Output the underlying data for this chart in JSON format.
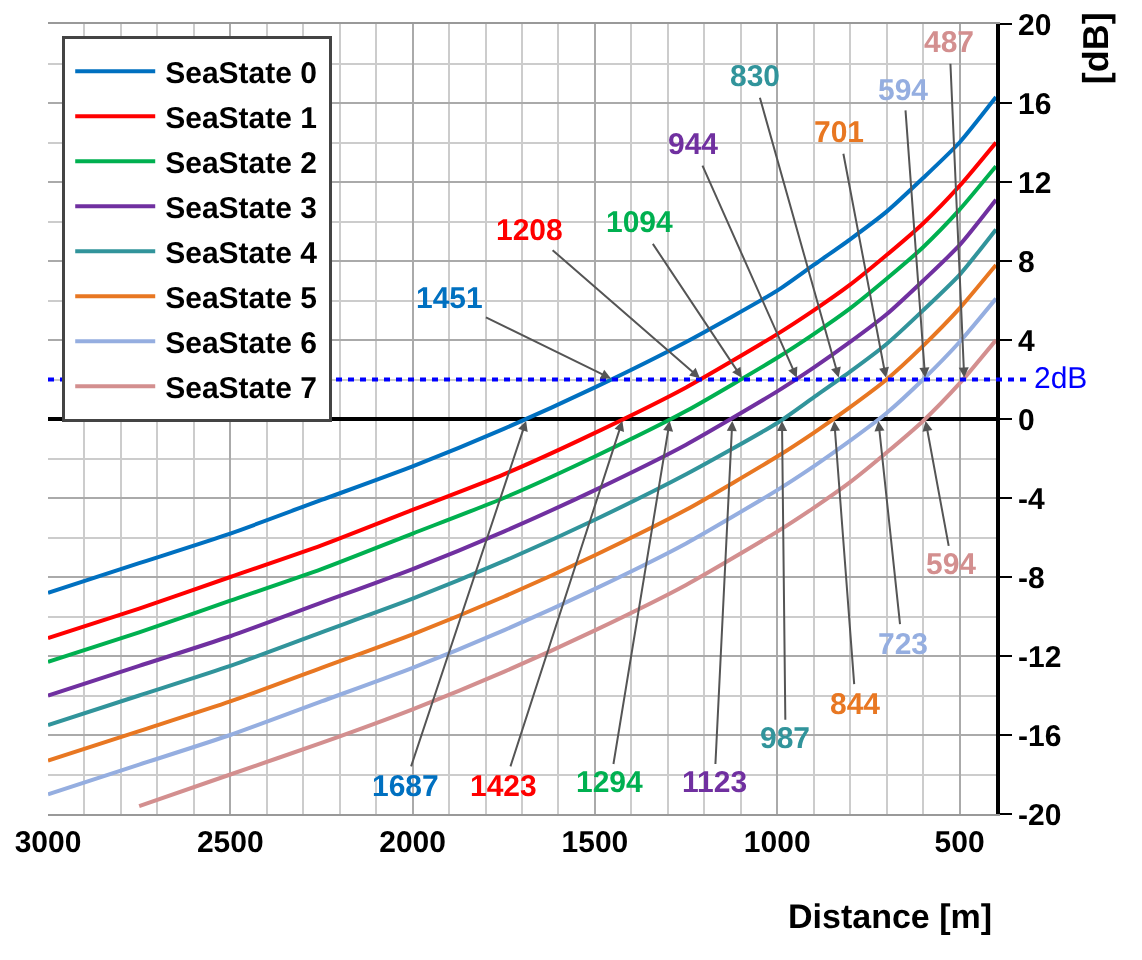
{
  "chart_data": {
    "type": "line",
    "xlabel": "Distance [m]",
    "ylabel": "[dB]",
    "x": [
      3000,
      2750,
      2500,
      2250,
      2000,
      1750,
      1500,
      1250,
      1000,
      900,
      800,
      700,
      600,
      500,
      400
    ],
    "xlim": [
      3000,
      400
    ],
    "xticks": [
      3000,
      2500,
      2000,
      1500,
      1000,
      500
    ],
    "ylim": [
      -20,
      20
    ],
    "yticks": [
      -20,
      -16,
      -12,
      -8,
      -4,
      0,
      4,
      8,
      12,
      16,
      20
    ],
    "grid": true,
    "legend": "top left",
    "marker": "none",
    "line_style": "solid",
    "series": [
      {
        "name": "SeaState 0",
        "color": "#0070c0",
        "values": [
          -8.8,
          -7.3,
          -5.8,
          -4.1,
          -2.4,
          -0.5,
          1.6,
          3.9,
          6.5,
          7.8,
          9.1,
          10.5,
          12.2,
          14.0,
          16.3
        ]
      },
      {
        "name": "SeaState 1",
        "color": "#ff0000",
        "values": [
          -11.1,
          -9.6,
          -8.0,
          -6.4,
          -4.6,
          -2.8,
          -0.7,
          1.6,
          4.3,
          5.5,
          6.8,
          8.3,
          9.9,
          11.8,
          14.0
        ]
      },
      {
        "name": "SeaState 2",
        "color": "#00b050",
        "values": [
          -12.3,
          -10.8,
          -9.2,
          -7.6,
          -5.8,
          -4.0,
          -1.9,
          0.4,
          3.1,
          4.3,
          5.6,
          7.1,
          8.7,
          10.6,
          12.8
        ]
      },
      {
        "name": "SeaState 3",
        "color": "#7030a0",
        "values": [
          -14.0,
          -12.5,
          -11.0,
          -9.3,
          -7.6,
          -5.7,
          -3.6,
          -1.3,
          1.4,
          2.6,
          3.9,
          5.3,
          7.0,
          8.8,
          11.1
        ]
      },
      {
        "name": "SeaState 4",
        "color": "#31949b",
        "values": [
          -15.5,
          -14.0,
          -12.5,
          -10.8,
          -9.1,
          -7.2,
          -5.1,
          -2.8,
          -0.2,
          1.1,
          2.4,
          3.8,
          5.5,
          7.3,
          9.6
        ]
      },
      {
        "name": "SeaState 5",
        "color": "#e87722",
        "values": [
          -17.3,
          -15.8,
          -14.3,
          -12.6,
          -10.9,
          -9.0,
          -6.9,
          -4.6,
          -1.9,
          -0.7,
          0.6,
          2.0,
          3.7,
          5.6,
          7.8
        ]
      },
      {
        "name": "SeaState 6",
        "color": "#95aee0",
        "values": [
          -19.0,
          -17.5,
          -16.0,
          -14.3,
          -12.6,
          -10.7,
          -8.6,
          -6.3,
          -3.6,
          -2.4,
          -1.1,
          0.3,
          2.0,
          3.9,
          6.1
        ]
      },
      {
        "name": "SeaState 7",
        "color": "#d38f8f",
        "values": [
          null,
          -19.6,
          -18.0,
          -16.4,
          -14.7,
          -12.8,
          -10.7,
          -8.4,
          -5.7,
          -4.5,
          -3.2,
          -1.7,
          -0.1,
          1.8,
          4.0
        ]
      }
    ],
    "ref_lines": [
      {
        "axis": "y",
        "value": 2,
        "label": "2dB",
        "color": "#0000ff",
        "line_style": "dotted"
      }
    ],
    "annotations": [
      {
        "text": "1687",
        "x": 1687,
        "y": 0
      },
      {
        "text": "1423",
        "x": 1423,
        "y": 0
      },
      {
        "text": "1294",
        "x": 1294,
        "y": 0
      },
      {
        "text": "1123",
        "x": 1123,
        "y": 0
      },
      {
        "text": "987",
        "x": 987,
        "y": 0
      },
      {
        "text": "844",
        "x": 844,
        "y": 0
      },
      {
        "text": "723",
        "x": 723,
        "y": 0
      },
      {
        "text": "594",
        "x": 594,
        "y": 0
      },
      {
        "text": "1451",
        "x": 1451,
        "y": 2
      },
      {
        "text": "1208",
        "x": 1208,
        "y": 2
      },
      {
        "text": "1094",
        "x": 1094,
        "y": 2
      },
      {
        "text": "944",
        "x": 944,
        "y": 2
      },
      {
        "text": "830",
        "x": 830,
        "y": 2
      },
      {
        "text": "701",
        "x": 701,
        "y": 2
      },
      {
        "text": "594",
        "x": 594,
        "y": 2
      },
      {
        "text": "487",
        "x": 487,
        "y": 2
      }
    ]
  }
}
